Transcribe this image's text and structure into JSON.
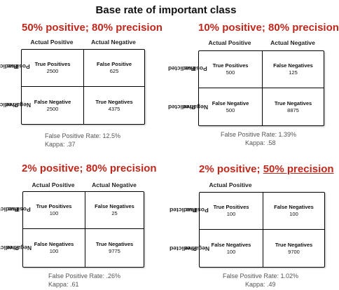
{
  "title": "Base rate of important class",
  "labels": {
    "actual_positive": "Actual Positive",
    "actual_negative": "Actual Negative",
    "predicted_positive_l1": "Predicted",
    "predicted_positive_l2": "Positive",
    "predicted_negative_l1": "Predicted",
    "predicted_negative_l2": "Negative"
  },
  "panels": [
    {
      "title": "50% positive; 80% precision",
      "cells": {
        "tp_label": "True Positives",
        "tp_value": "2500",
        "fp_label": "False Positive",
        "fp_value": "625",
        "fn_label": "False Negative",
        "fn_value": "2500",
        "tn_label": "True Negatives",
        "tn_value": "4375"
      },
      "fpr": "False Positive Rate: 12.5%",
      "kappa": "Kappa: .37"
    },
    {
      "title": "10% positive; 80% precision",
      "cells": {
        "tp_label": "True Positives",
        "tp_value": "500",
        "fp_label": "False Negatives",
        "fp_value": "125",
        "fn_label": "False Negative",
        "fn_value": "500",
        "tn_label": "True Negatives",
        "tn_value": "8875"
      },
      "fpr": "False Positive Rate: 1.39%",
      "kappa": "Kappa: .58"
    },
    {
      "title": "2% positive; 80% precision",
      "cells": {
        "tp_label": "True Positives",
        "tp_value": "100",
        "fp_label": "False Negatives",
        "fp_value": "25",
        "fn_label": "False Negatives",
        "fn_value": "100",
        "tn_label": "True Negatives",
        "tn_value": "9775"
      },
      "fpr": "False Positive Rate: .26%",
      "kappa": "Kappa: .61"
    },
    {
      "title_a": "2% positive; ",
      "title_b": "50% precision",
      "cells": {
        "tp_label": "True Positives",
        "tp_value": "100",
        "fp_label": "False Negatives",
        "fp_value": "100",
        "fn_label": "False Negatives",
        "fn_value": "100",
        "tn_label": "True Negatives",
        "tn_value": "9700"
      },
      "fpr": "False Positive Rate: 1.02%",
      "kappa": "Kappa: .49"
    }
  ]
}
